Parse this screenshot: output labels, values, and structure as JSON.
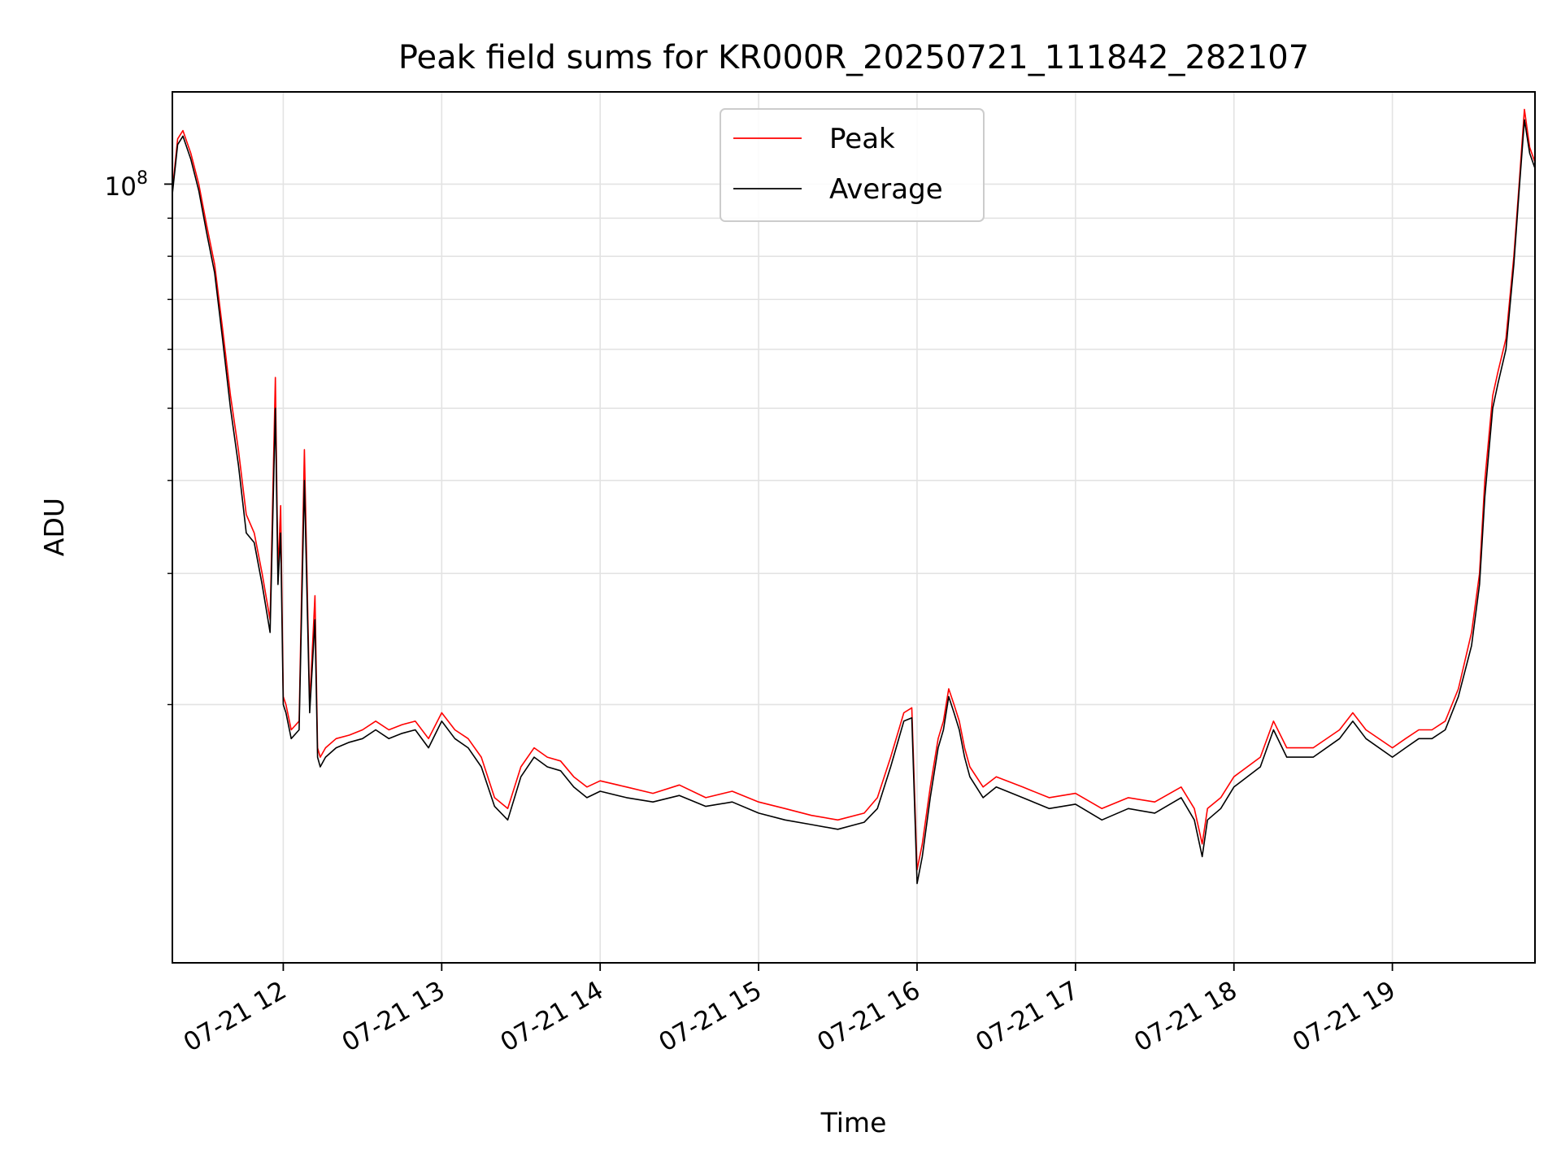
{
  "chart_data": {
    "type": "line",
    "title": "Peak field sums for KR000R_20250721_111842_282107",
    "xlabel": "Time",
    "ylabel": "ADU",
    "yscale": "log",
    "y_tick_label": {
      "base": "10",
      "exponent": "8"
    },
    "x_tick_labels": [
      "07-21 12",
      "07-21 13",
      "07-21 14",
      "07-21 15",
      "07-21 16",
      "07-21 17",
      "07-21 18",
      "07-21 19"
    ],
    "xlim": [
      "2025-07-21 11:18",
      "2025-07-21 19:54"
    ],
    "ylim": [
      9000000,
      133000000
    ],
    "grid": true,
    "legend_position": "upper center",
    "series": [
      {
        "name": "Peak",
        "color": "#ff0000",
        "x": [
          "11:18",
          "11:20",
          "11:22",
          "11:25",
          "11:28",
          "11:31",
          "11:34",
          "11:37",
          "11:40",
          "11:43",
          "11:46",
          "11:49",
          "11:52",
          "11:55",
          "11:57",
          "11:58",
          "11:59",
          "12:00",
          "12:01",
          "12:03",
          "12:06",
          "12:08",
          "12:10",
          "12:12",
          "12:13",
          "12:14",
          "12:16",
          "12:20",
          "12:25",
          "12:30",
          "12:35",
          "12:40",
          "12:45",
          "12:50",
          "12:55",
          "13:00",
          "13:05",
          "13:10",
          "13:15",
          "13:20",
          "13:25",
          "13:30",
          "13:35",
          "13:40",
          "13:45",
          "13:50",
          "13:55",
          "14:00",
          "14:10",
          "14:20",
          "14:30",
          "14:40",
          "14:50",
          "15:00",
          "15:10",
          "15:20",
          "15:30",
          "15:40",
          "15:45",
          "15:50",
          "15:55",
          "15:58",
          "16:00",
          "16:02",
          "16:05",
          "16:08",
          "16:10",
          "16:12",
          "16:14",
          "16:16",
          "16:18",
          "16:20",
          "16:25",
          "16:30",
          "16:40",
          "16:50",
          "17:00",
          "17:10",
          "17:20",
          "17:30",
          "17:40",
          "17:45",
          "17:48",
          "17:50",
          "17:55",
          "18:00",
          "18:10",
          "18:15",
          "18:20",
          "18:30",
          "18:40",
          "18:45",
          "18:50",
          "19:00",
          "19:05",
          "19:10",
          "19:15",
          "19:20",
          "19:25",
          "19:30",
          "19:33",
          "19:35",
          "19:38",
          "19:40",
          "19:43",
          "19:46",
          "19:48",
          "19:50",
          "19:52",
          "19:54"
        ],
        "y": [
          98000000,
          115000000,
          118000000,
          110000000,
          100000000,
          88000000,
          78000000,
          64000000,
          52000000,
          44000000,
          36000000,
          34000000,
          30000000,
          26000000,
          55000000,
          30000000,
          37000000,
          20500000,
          20000000,
          18500000,
          19000000,
          44000000,
          20000000,
          28000000,
          17500000,
          17000000,
          17500000,
          18000000,
          18200000,
          18500000,
          19000000,
          18500000,
          18800000,
          19000000,
          18000000,
          19500000,
          18500000,
          18000000,
          17000000,
          15000000,
          14500000,
          16500000,
          17500000,
          17000000,
          16800000,
          16000000,
          15500000,
          15800000,
          15500000,
          15200000,
          15600000,
          15000000,
          15300000,
          14800000,
          14500000,
          14200000,
          14000000,
          14300000,
          15000000,
          17000000,
          19500000,
          19800000,
          12000000,
          13000000,
          15500000,
          18000000,
          19000000,
          21000000,
          20000000,
          19000000,
          17500000,
          16500000,
          15500000,
          16000000,
          15500000,
          15000000,
          15200000,
          14500000,
          15000000,
          14800000,
          15500000,
          14500000,
          13000000,
          14500000,
          15000000,
          16000000,
          17000000,
          19000000,
          17500000,
          17500000,
          18500000,
          19500000,
          18500000,
          17500000,
          18000000,
          18500000,
          18500000,
          19000000,
          21000000,
          25000000,
          30000000,
          40000000,
          52000000,
          56000000,
          62000000,
          80000000,
          100000000,
          126000000,
          112000000,
          107000000
        ]
      },
      {
        "name": "Average",
        "color": "#000000",
        "x": [
          "11:18",
          "11:20",
          "11:22",
          "11:25",
          "11:28",
          "11:31",
          "11:34",
          "11:37",
          "11:40",
          "11:43",
          "11:46",
          "11:49",
          "11:52",
          "11:55",
          "11:57",
          "11:58",
          "11:59",
          "12:00",
          "12:01",
          "12:03",
          "12:06",
          "12:08",
          "12:10",
          "12:12",
          "12:13",
          "12:14",
          "12:16",
          "12:20",
          "12:25",
          "12:30",
          "12:35",
          "12:40",
          "12:45",
          "12:50",
          "12:55",
          "13:00",
          "13:05",
          "13:10",
          "13:15",
          "13:20",
          "13:25",
          "13:30",
          "13:35",
          "13:40",
          "13:45",
          "13:50",
          "13:55",
          "14:00",
          "14:10",
          "14:20",
          "14:30",
          "14:40",
          "14:50",
          "15:00",
          "15:10",
          "15:20",
          "15:30",
          "15:40",
          "15:45",
          "15:50",
          "15:55",
          "15:58",
          "16:00",
          "16:02",
          "16:05",
          "16:08",
          "16:10",
          "16:12",
          "16:14",
          "16:16",
          "16:18",
          "16:20",
          "16:25",
          "16:30",
          "16:40",
          "16:50",
          "17:00",
          "17:10",
          "17:20",
          "17:30",
          "17:40",
          "17:45",
          "17:48",
          "17:50",
          "17:55",
          "18:00",
          "18:10",
          "18:15",
          "18:20",
          "18:30",
          "18:40",
          "18:45",
          "18:50",
          "19:00",
          "19:05",
          "19:10",
          "19:15",
          "19:20",
          "19:25",
          "19:30",
          "19:33",
          "19:35",
          "19:38",
          "19:40",
          "19:43",
          "19:46",
          "19:48",
          "19:50",
          "19:52",
          "19:54"
        ],
        "y": [
          97000000,
          113000000,
          116000000,
          108000000,
          98000000,
          86000000,
          76000000,
          62000000,
          50000000,
          42000000,
          34000000,
          33000000,
          29000000,
          25000000,
          50000000,
          29000000,
          34000000,
          20000000,
          19500000,
          18000000,
          18500000,
          40000000,
          19500000,
          26000000,
          17000000,
          16500000,
          17000000,
          17500000,
          17800000,
          18000000,
          18500000,
          18000000,
          18300000,
          18500000,
          17500000,
          19000000,
          18000000,
          17500000,
          16500000,
          14600000,
          14000000,
          16000000,
          17000000,
          16500000,
          16300000,
          15500000,
          15000000,
          15300000,
          15000000,
          14800000,
          15100000,
          14600000,
          14800000,
          14300000,
          14000000,
          13800000,
          13600000,
          13900000,
          14500000,
          16500000,
          19000000,
          19200000,
          11500000,
          12500000,
          15000000,
          17500000,
          18500000,
          20500000,
          19500000,
          18500000,
          17000000,
          16000000,
          15000000,
          15500000,
          15000000,
          14500000,
          14700000,
          14000000,
          14500000,
          14300000,
          15000000,
          14000000,
          12500000,
          14000000,
          14500000,
          15500000,
          16500000,
          18500000,
          17000000,
          17000000,
          18000000,
          19000000,
          18000000,
          17000000,
          17500000,
          18000000,
          18000000,
          18500000,
          20500000,
          24000000,
          29000000,
          38000000,
          50000000,
          54000000,
          60000000,
          78000000,
          98000000,
          122000000,
          110000000,
          105000000
        ]
      }
    ]
  }
}
